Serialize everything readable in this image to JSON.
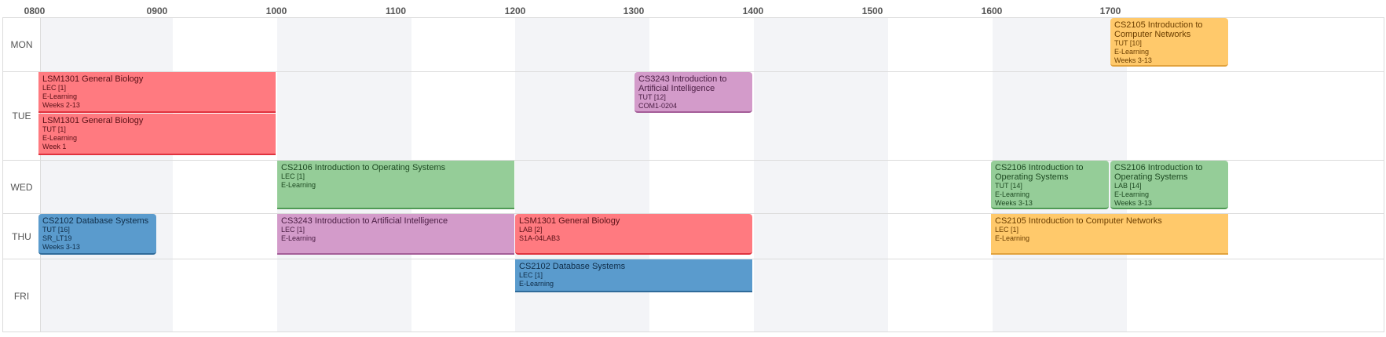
{
  "hours": [
    "0800",
    "0900",
    "1000",
    "1100",
    "1200",
    "1300",
    "1400",
    "1500",
    "1600",
    "1700"
  ],
  "days": [
    "MON",
    "TUE",
    "WED",
    "THU",
    "FRI"
  ],
  "lessons": {
    "mon_cs2105_tut": {
      "title": "CS2105 Introduction to Computer Networks",
      "type": "TUT [10]",
      "venue": "E-Learning",
      "weeks": "Weeks 3-13"
    },
    "tue_lsm1301_lec": {
      "title": "LSM1301 General Biology",
      "type": "LEC [1]",
      "venue": "E-Learning",
      "weeks": "Weeks 2-13"
    },
    "tue_lsm1301_tut": {
      "title": "LSM1301 General Biology",
      "type": "TUT [1]",
      "venue": "E-Learning",
      "weeks": "Week 1"
    },
    "tue_cs3243_tut": {
      "title": "CS3243 Introduction to Artificial Intelligence",
      "type": "TUT [12]",
      "venue": "COM1-0204"
    },
    "wed_cs2106_lec": {
      "title": "CS2106 Introduction to Operating Systems",
      "type": "LEC [1]",
      "venue": "E-Learning"
    },
    "wed_cs2106_tut": {
      "title": "CS2106 Introduction to Operating Systems",
      "type": "TUT [14]",
      "venue": "E-Learning",
      "weeks": "Weeks 3-13"
    },
    "wed_cs2106_lab": {
      "title": "CS2106 Introduction to Operating Systems",
      "type": "LAB [14]",
      "venue": "E-Learning",
      "weeks": "Weeks 3-13"
    },
    "thu_cs2102_tut": {
      "title": "CS2102 Database Systems",
      "type": "TUT [16]",
      "venue": "SR_LT19",
      "weeks": "Weeks 3-13"
    },
    "thu_cs3243_lec": {
      "title": "CS3243 Introduction to Artificial Intelligence",
      "type": "LEC [1]",
      "venue": "E-Learning"
    },
    "thu_lsm1301_lab": {
      "title": "LSM1301 General Biology",
      "type": "LAB [2]",
      "venue": "S1A-04LAB3"
    },
    "thu_cs2105_lec": {
      "title": "CS2105 Introduction to Computer Networks",
      "type": "LEC [1]",
      "venue": "E-Learning"
    },
    "fri_cs2102_lec": {
      "title": "CS2102 Database Systems",
      "type": "LEC [1]",
      "venue": "E-Learning"
    }
  },
  "colors": {
    "biology": "#ff7a80",
    "ai": "#d39bca",
    "os": "#95cd98",
    "db": "#5a9bcd",
    "networks": "#ffc96b"
  }
}
